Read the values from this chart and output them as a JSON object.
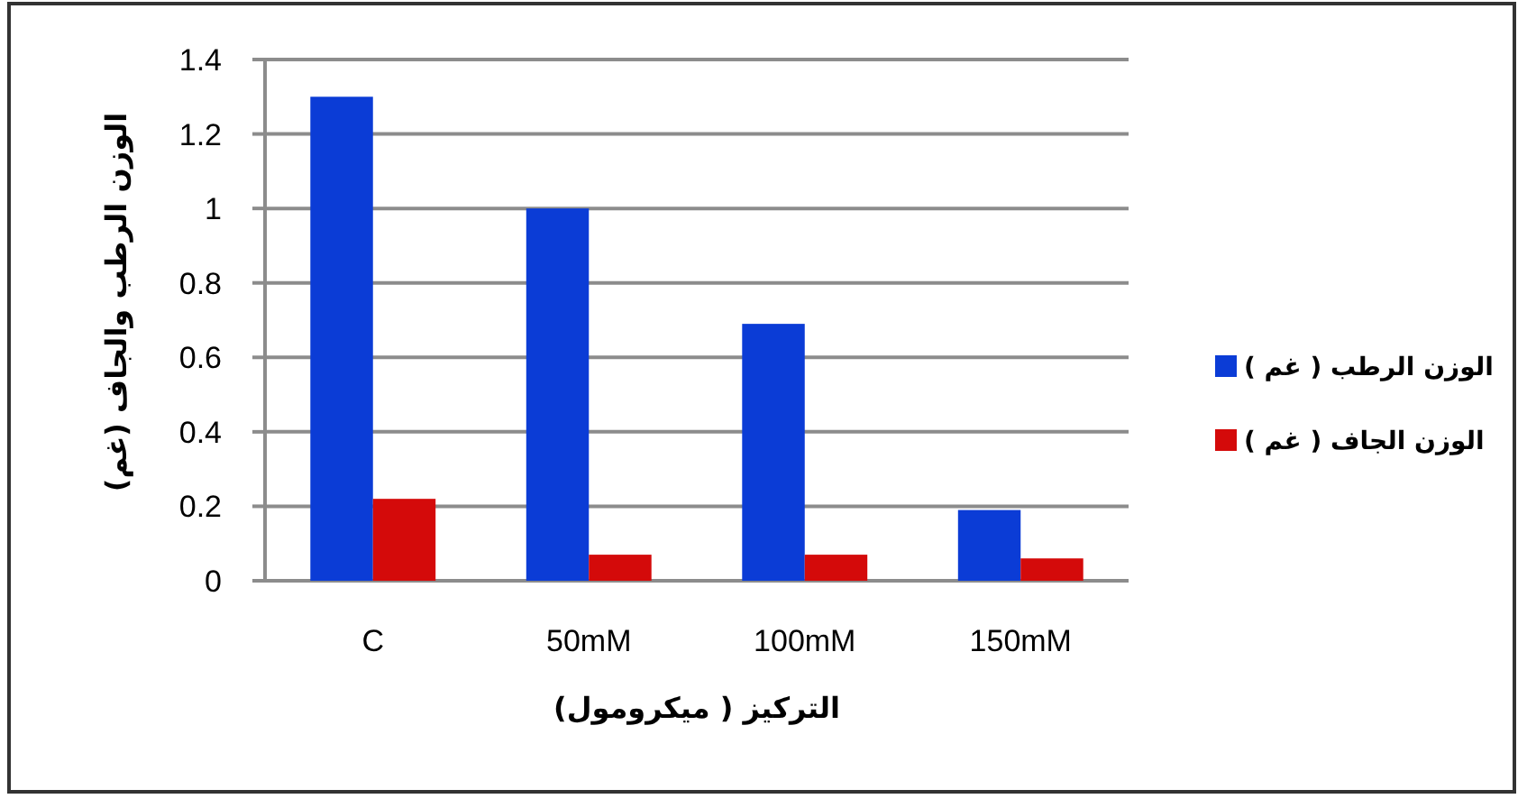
{
  "chart_data": {
    "type": "bar",
    "categories": [
      "C",
      "50mM",
      "100mM",
      "150mM"
    ],
    "series": [
      {
        "name": "الوزن الرطب ( غم )",
        "color": "#0b3cd6",
        "values": [
          1.3,
          1.0,
          0.69,
          0.19
        ]
      },
      {
        "name": "الوزن الجاف ( غم )",
        "color": "#d40a0a",
        "values": [
          0.22,
          0.07,
          0.07,
          0.06
        ]
      }
    ],
    "xlabel": "التركيز ( ميكرومول)",
    "ylabel": "الوزن الرطب والجاف (غم)",
    "ylim": [
      0,
      1.4
    ],
    "yticks": [
      0,
      0.2,
      0.4,
      0.6,
      0.8,
      1,
      1.2,
      1.4
    ],
    "grid": "y",
    "legend": "right"
  }
}
